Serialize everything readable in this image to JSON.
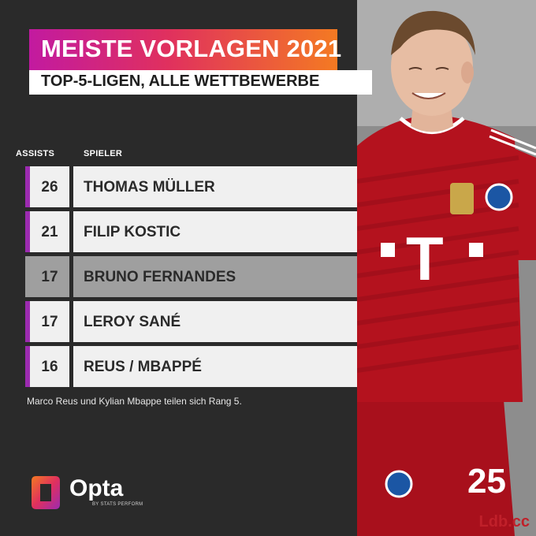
{
  "header": {
    "title": "MEISTE VORLAGEN 2021",
    "subtitle": "TOP-5-LIGEN, ALLE WETTBEWERBE"
  },
  "chart_data": {
    "type": "table",
    "columns": [
      "ASSISTS",
      "SPIELER"
    ],
    "rows": [
      {
        "assists": "26",
        "player": "THOMAS MÜLLER",
        "highlight": "purple"
      },
      {
        "assists": "21",
        "player": "FILIP KOSTIC",
        "highlight": "purple"
      },
      {
        "assists": "17",
        "player": "BRUNO FERNANDES",
        "highlight": "grey"
      },
      {
        "assists": "17",
        "player": "LEROY SANÉ",
        "highlight": "purple"
      },
      {
        "assists": "16",
        "player": "REUS / MBAPPÉ",
        "highlight": "purple"
      }
    ]
  },
  "footnote": "Marco Reus und Kylian Mbappe teilen sich Rang 5.",
  "brand": {
    "name": "Opta",
    "sub": "BY STATS PERFORM",
    "accent": "#9c2bb0",
    "gradient": [
      "#c21aa0",
      "#e0305e",
      "#f47a22"
    ]
  },
  "photo": {
    "kit_number": "25",
    "shirt_letter": "T",
    "shirt_color": "#b4121e"
  },
  "watermark": "Ldb.cc"
}
